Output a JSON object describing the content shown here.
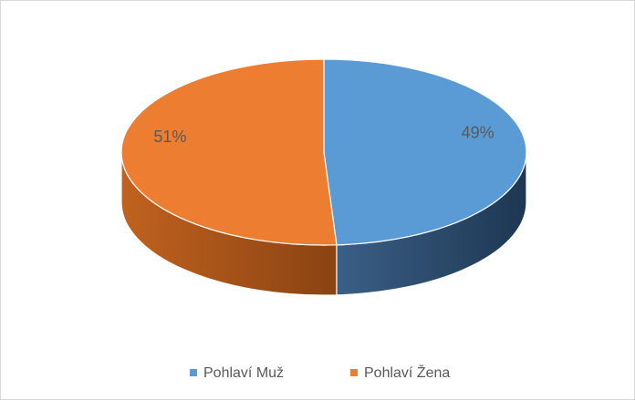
{
  "chart_data": {
    "type": "pie",
    "categories": [
      "Pohlaví Muž",
      "Pohlaví Žena"
    ],
    "values": [
      49,
      51
    ],
    "value_labels": [
      "49%",
      "51%"
    ],
    "colors": [
      "#5b9bd5",
      "#ed7d31"
    ],
    "legend": "bottom"
  }
}
